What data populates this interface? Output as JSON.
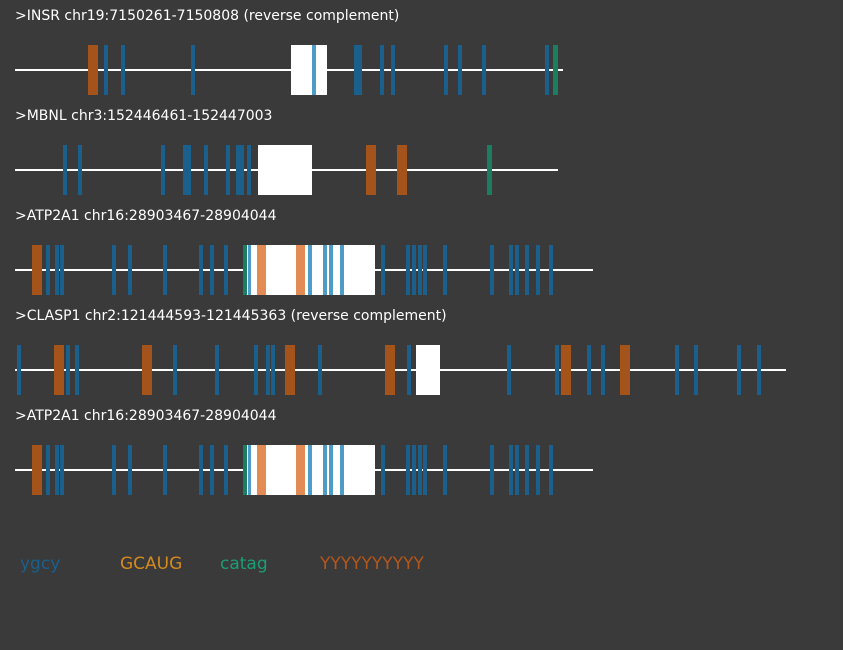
{
  "colors": {
    "background": "#3a3a3a",
    "line": "#ffffff",
    "exon": "#ffffff",
    "ygcy": "#1b5f8c",
    "GCAUG": "#a4531a",
    "catag": "#1a7f60",
    "YYYYYYYYYY": "#a4531a",
    "ygcy_in_exon": "#4d9cc7",
    "GCAUG_in_exon": "#e38b55"
  },
  "legend": [
    {
      "key": "ygcy",
      "label": "ygcy",
      "color": "#1b5f8c"
    },
    {
      "key": "GCAUG",
      "label": "GCAUG",
      "color": "#d68a1e"
    },
    {
      "key": "catag",
      "label": "catag",
      "color": "#1a9e76"
    },
    {
      "key": "YYYYYYYYYY",
      "label": "YYYYYYYYYY",
      "color": "#b5561a"
    }
  ],
  "sequences": [
    {
      "label": ">INSR chr19:7150261-7150808 (reverse complement)",
      "length": 548,
      "exons": [
        [
          276,
          312
        ]
      ],
      "motifs": [
        {
          "type": "YYYYYYYYYY",
          "start": 73,
          "end": 83
        },
        {
          "type": "ygcy",
          "start": 89,
          "end": 93
        },
        {
          "type": "ygcy",
          "start": 106,
          "end": 110
        },
        {
          "type": "ygcy",
          "start": 176,
          "end": 180
        },
        {
          "type": "ygcy",
          "start": 297,
          "end": 301
        },
        {
          "type": "ygcy",
          "start": 339,
          "end": 347
        },
        {
          "type": "ygcy",
          "start": 365,
          "end": 369
        },
        {
          "type": "ygcy",
          "start": 376,
          "end": 380
        },
        {
          "type": "ygcy",
          "start": 429,
          "end": 433
        },
        {
          "type": "ygcy",
          "start": 443,
          "end": 447
        },
        {
          "type": "ygcy",
          "start": 467,
          "end": 471
        },
        {
          "type": "ygcy",
          "start": 530,
          "end": 534
        },
        {
          "type": "catag",
          "start": 538,
          "end": 543
        }
      ]
    },
    {
      "label": ">MBNL chr3:152446461-152447003",
      "length": 543,
      "exons": [
        [
          243,
          297
        ]
      ],
      "motifs": [
        {
          "type": "ygcy",
          "start": 48,
          "end": 52
        },
        {
          "type": "ygcy",
          "start": 63,
          "end": 67
        },
        {
          "type": "ygcy",
          "start": 146,
          "end": 150
        },
        {
          "type": "ygcy",
          "start": 168,
          "end": 176
        },
        {
          "type": "ygcy",
          "start": 189,
          "end": 193
        },
        {
          "type": "ygcy",
          "start": 211,
          "end": 215
        },
        {
          "type": "ygcy",
          "start": 221,
          "end": 229
        },
        {
          "type": "ygcy",
          "start": 232,
          "end": 236
        },
        {
          "type": "YYYYYYYYYY",
          "start": 351,
          "end": 361
        },
        {
          "type": "YYYYYYYYYY",
          "start": 382,
          "end": 392
        },
        {
          "type": "catag",
          "start": 472,
          "end": 477
        }
      ]
    },
    {
      "label": ">ATP2A1 chr16:28903467-28904044",
      "length": 578,
      "exons": [
        [
          232,
          360
        ]
      ],
      "motifs": [
        {
          "type": "YYYYYYYYYY",
          "start": 17,
          "end": 27
        },
        {
          "type": "ygcy",
          "start": 31,
          "end": 35
        },
        {
          "type": "ygcy",
          "start": 40,
          "end": 44
        },
        {
          "type": "ygcy",
          "start": 45,
          "end": 49
        },
        {
          "type": "ygcy",
          "start": 97,
          "end": 101
        },
        {
          "type": "ygcy",
          "start": 113,
          "end": 117
        },
        {
          "type": "ygcy",
          "start": 148,
          "end": 152
        },
        {
          "type": "ygcy",
          "start": 184,
          "end": 188
        },
        {
          "type": "ygcy",
          "start": 195,
          "end": 199
        },
        {
          "type": "ygcy",
          "start": 209,
          "end": 213
        },
        {
          "type": "catag",
          "start": 228,
          "end": 232
        },
        {
          "type": "ygcy",
          "start": 233,
          "end": 236
        },
        {
          "type": "GCAUG",
          "start": 242,
          "end": 251
        },
        {
          "type": "GCAUG",
          "start": 281,
          "end": 290
        },
        {
          "type": "ygcy",
          "start": 293,
          "end": 297
        },
        {
          "type": "ygcy",
          "start": 308,
          "end": 312
        },
        {
          "type": "ygcy",
          "start": 314,
          "end": 318
        },
        {
          "type": "ygcy",
          "start": 325,
          "end": 329
        },
        {
          "type": "ygcy",
          "start": 366,
          "end": 370
        },
        {
          "type": "ygcy",
          "start": 391,
          "end": 395
        },
        {
          "type": "ygcy",
          "start": 397,
          "end": 401
        },
        {
          "type": "ygcy",
          "start": 403,
          "end": 407
        },
        {
          "type": "ygcy",
          "start": 408,
          "end": 412
        },
        {
          "type": "ygcy",
          "start": 428,
          "end": 432
        },
        {
          "type": "ygcy",
          "start": 475,
          "end": 479
        },
        {
          "type": "ygcy",
          "start": 494,
          "end": 498
        },
        {
          "type": "ygcy",
          "start": 500,
          "end": 504
        },
        {
          "type": "ygcy",
          "start": 510,
          "end": 514
        },
        {
          "type": "ygcy",
          "start": 521,
          "end": 525
        },
        {
          "type": "ygcy",
          "start": 534,
          "end": 538
        }
      ]
    },
    {
      "label": ">CLASP1 chr2:121444593-121445363 (reverse complement)",
      "length": 771,
      "exons": [
        [
          401,
          425
        ]
      ],
      "motifs": [
        {
          "type": "ygcy",
          "start": 2,
          "end": 6
        },
        {
          "type": "YYYYYYYYYY",
          "start": 39,
          "end": 49
        },
        {
          "type": "ygcy",
          "start": 51,
          "end": 55
        },
        {
          "type": "ygcy",
          "start": 60,
          "end": 64
        },
        {
          "type": "YYYYYYYYYY",
          "start": 127,
          "end": 137
        },
        {
          "type": "ygcy",
          "start": 158,
          "end": 162
        },
        {
          "type": "ygcy",
          "start": 200,
          "end": 204
        },
        {
          "type": "ygcy",
          "start": 239,
          "end": 243
        },
        {
          "type": "ygcy",
          "start": 251,
          "end": 255
        },
        {
          "type": "ygcy",
          "start": 256,
          "end": 260
        },
        {
          "type": "YYYYYYYYYY",
          "start": 270,
          "end": 280
        },
        {
          "type": "ygcy",
          "start": 303,
          "end": 307
        },
        {
          "type": "YYYYYYYYYY",
          "start": 370,
          "end": 380
        },
        {
          "type": "ygcy",
          "start": 392,
          "end": 396
        },
        {
          "type": "ygcy",
          "start": 492,
          "end": 496
        },
        {
          "type": "ygcy",
          "start": 540,
          "end": 544
        },
        {
          "type": "YYYYYYYYYY",
          "start": 546,
          "end": 556
        },
        {
          "type": "ygcy",
          "start": 572,
          "end": 576
        },
        {
          "type": "ygcy",
          "start": 586,
          "end": 590
        },
        {
          "type": "YYYYYYYYYY",
          "start": 605,
          "end": 615
        },
        {
          "type": "ygcy",
          "start": 660,
          "end": 664
        },
        {
          "type": "ygcy",
          "start": 679,
          "end": 683
        },
        {
          "type": "ygcy",
          "start": 722,
          "end": 726
        },
        {
          "type": "ygcy",
          "start": 742,
          "end": 746
        }
      ]
    },
    {
      "label": ">ATP2A1 chr16:28903467-28904044",
      "length": 578,
      "exons": [
        [
          232,
          360
        ]
      ],
      "motifs": [
        {
          "type": "YYYYYYYYYY",
          "start": 17,
          "end": 27
        },
        {
          "type": "ygcy",
          "start": 31,
          "end": 35
        },
        {
          "type": "ygcy",
          "start": 40,
          "end": 44
        },
        {
          "type": "ygcy",
          "start": 45,
          "end": 49
        },
        {
          "type": "ygcy",
          "start": 97,
          "end": 101
        },
        {
          "type": "ygcy",
          "start": 113,
          "end": 117
        },
        {
          "type": "ygcy",
          "start": 148,
          "end": 152
        },
        {
          "type": "ygcy",
          "start": 184,
          "end": 188
        },
        {
          "type": "ygcy",
          "start": 195,
          "end": 199
        },
        {
          "type": "ygcy",
          "start": 209,
          "end": 213
        },
        {
          "type": "catag",
          "start": 228,
          "end": 232
        },
        {
          "type": "ygcy",
          "start": 233,
          "end": 236
        },
        {
          "type": "GCAUG",
          "start": 242,
          "end": 251
        },
        {
          "type": "GCAUG",
          "start": 281,
          "end": 290
        },
        {
          "type": "ygcy",
          "start": 293,
          "end": 297
        },
        {
          "type": "ygcy",
          "start": 308,
          "end": 312
        },
        {
          "type": "ygcy",
          "start": 314,
          "end": 318
        },
        {
          "type": "ygcy",
          "start": 325,
          "end": 329
        },
        {
          "type": "ygcy",
          "start": 366,
          "end": 370
        },
        {
          "type": "ygcy",
          "start": 391,
          "end": 395
        },
        {
          "type": "ygcy",
          "start": 397,
          "end": 401
        },
        {
          "type": "ygcy",
          "start": 403,
          "end": 407
        },
        {
          "type": "ygcy",
          "start": 408,
          "end": 412
        },
        {
          "type": "ygcy",
          "start": 428,
          "end": 432
        },
        {
          "type": "ygcy",
          "start": 475,
          "end": 479
        },
        {
          "type": "ygcy",
          "start": 494,
          "end": 498
        },
        {
          "type": "ygcy",
          "start": 500,
          "end": 504
        },
        {
          "type": "ygcy",
          "start": 510,
          "end": 514
        },
        {
          "type": "ygcy",
          "start": 521,
          "end": 525
        },
        {
          "type": "ygcy",
          "start": 534,
          "end": 538
        }
      ]
    }
  ]
}
